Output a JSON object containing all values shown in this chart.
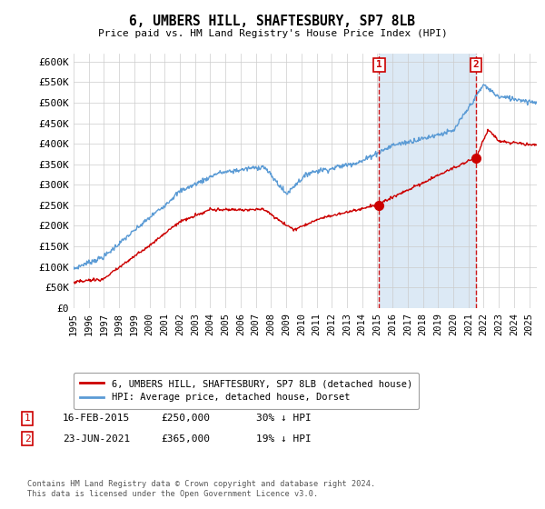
{
  "title": "6, UMBERS HILL, SHAFTESBURY, SP7 8LB",
  "subtitle": "Price paid vs. HM Land Registry's House Price Index (HPI)",
  "ylabel_ticks": [
    "£0",
    "£50K",
    "£100K",
    "£150K",
    "£200K",
    "£250K",
    "£300K",
    "£350K",
    "£400K",
    "£450K",
    "£500K",
    "£550K",
    "£600K"
  ],
  "ylim": [
    0,
    620000
  ],
  "xlim_start": 1995.0,
  "xlim_end": 2025.5,
  "hpi_color": "#5b9bd5",
  "price_color": "#cc0000",
  "shade_color": "#dce9f5",
  "marker1_date": 2015.12,
  "marker1_price": 250000,
  "marker2_date": 2021.48,
  "marker2_price": 365000,
  "legend_line1": "6, UMBERS HILL, SHAFTESBURY, SP7 8LB (detached house)",
  "legend_line2": "HPI: Average price, detached house, Dorset",
  "ann1_label": "1",
  "ann1_date": "16-FEB-2015",
  "ann1_price": "£250,000",
  "ann1_pct": "30% ↓ HPI",
  "ann2_label": "2",
  "ann2_date": "23-JUN-2021",
  "ann2_price": "£365,000",
  "ann2_pct": "19% ↓ HPI",
  "footer": "Contains HM Land Registry data © Crown copyright and database right 2024.\nThis data is licensed under the Open Government Licence v3.0.",
  "background_color": "#ffffff",
  "grid_color": "#cccccc"
}
